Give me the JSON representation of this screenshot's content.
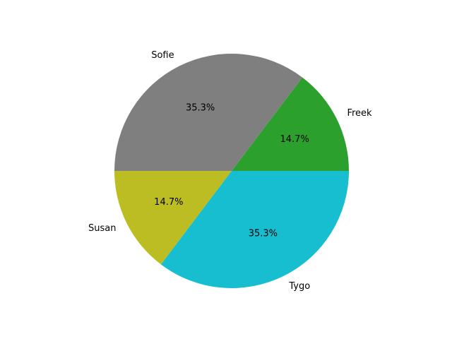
{
  "chart_data": {
    "type": "pie",
    "title": "",
    "start_angle_deg": 0,
    "direction": "counterclockwise",
    "slices": [
      {
        "label": "Freek",
        "value": 14.7,
        "pct_text": "14.7%",
        "color": "#2ca02c"
      },
      {
        "label": "Sofie",
        "value": 35.3,
        "pct_text": "35.3%",
        "color": "#7f7f7f"
      },
      {
        "label": "Susan",
        "value": 14.7,
        "pct_text": "14.7%",
        "color": "#bcbd22"
      },
      {
        "label": "Tygo",
        "value": 35.3,
        "pct_text": "35.3%",
        "color": "#17becf"
      }
    ]
  }
}
